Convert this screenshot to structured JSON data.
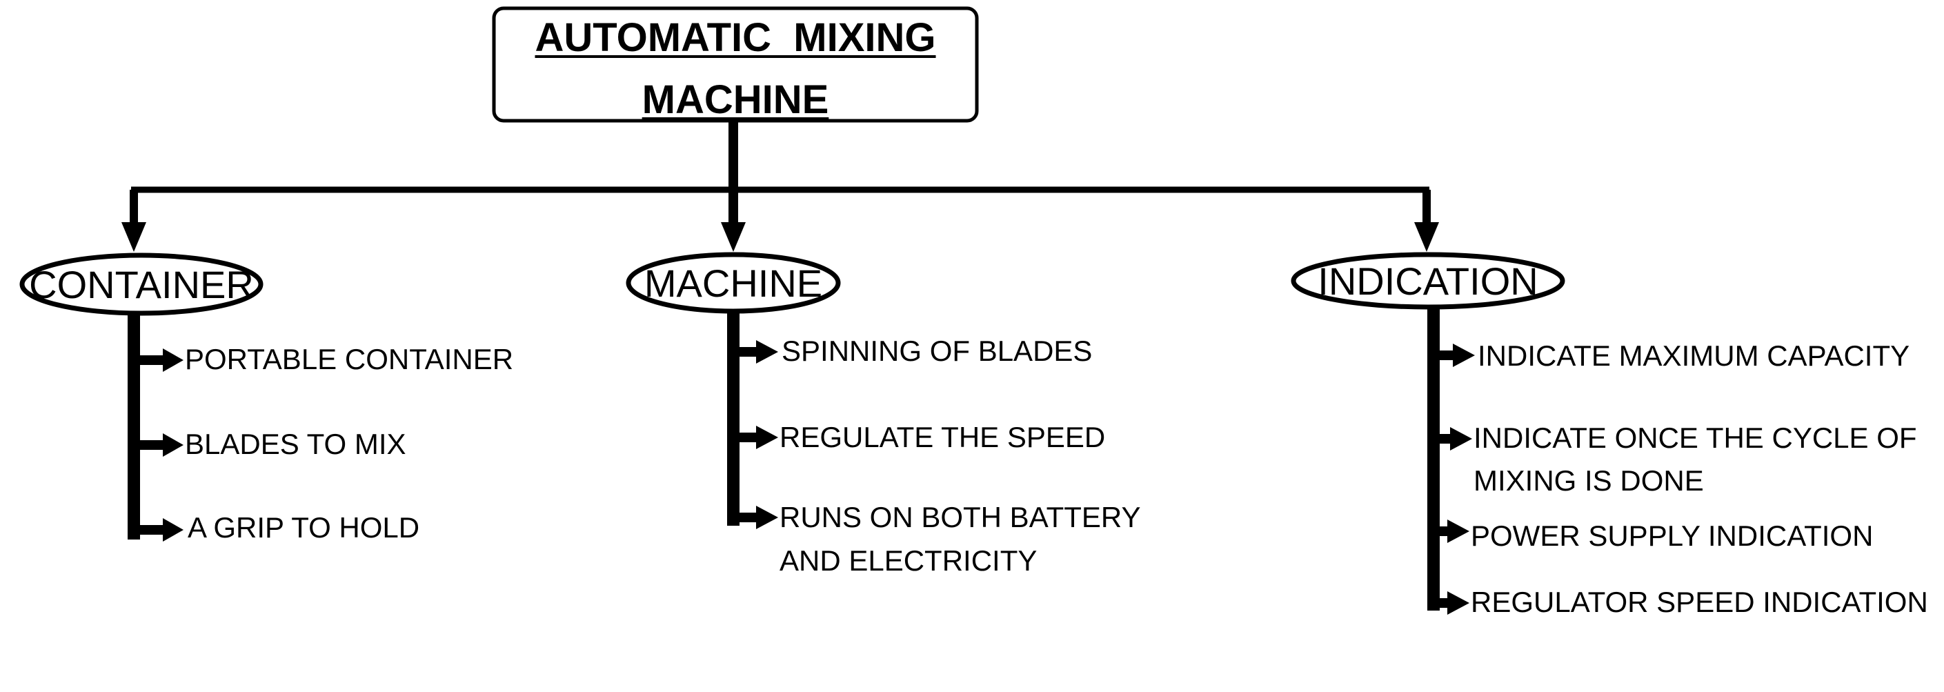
{
  "diagram": {
    "title_line_1": "AUTOMATIC  MIXING",
    "title_line_2": "MACHINE",
    "categories": [
      {
        "label": "CONTAINER",
        "items": [
          "PORTABLE CONTAINER",
          "BLADES TO MIX",
          "A GRIP TO HOLD"
        ]
      },
      {
        "label": "MACHINE",
        "items": [
          "SPINNING OF BLADES",
          "REGULATE THE SPEED",
          "RUNS ON BOTH BATTERY",
          "AND ELECTRICITY"
        ]
      },
      {
        "label": "INDICATION",
        "items": [
          "INDICATE MAXIMUM CAPACITY",
          "INDICATE ONCE THE CYCLE OF",
          "MIXING IS DONE",
          "POWER SUPPLY INDICATION",
          "REGULATOR SPEED INDICATION"
        ]
      }
    ]
  }
}
